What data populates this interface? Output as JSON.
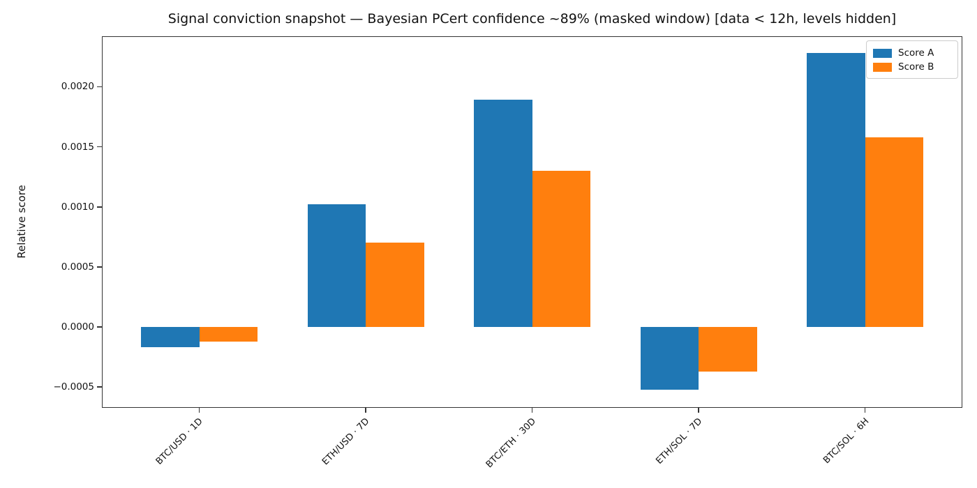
{
  "chart_data": {
    "type": "bar",
    "title": "Signal conviction snapshot — Bayesian PCert confidence ~89% (masked window) [data < 12h, levels hidden]",
    "ylabel": "Relative score",
    "xlabel": "",
    "categories": [
      "BTC/USD · 1D",
      "ETH/USD · 7D",
      "BTC/ETH · 30D",
      "ETH/SOL · 7D",
      "BTC/SOL · 6H"
    ],
    "series": [
      {
        "name": "Score A",
        "color": "#1f77b4",
        "values": [
          -0.00017,
          0.00102,
          0.00189,
          -0.00052,
          0.00228
        ]
      },
      {
        "name": "Score B",
        "color": "#ff7f0e",
        "values": [
          -0.00012,
          0.0007,
          0.0013,
          -0.00037,
          0.00158
        ]
      }
    ],
    "bar_width": 0.35,
    "ylim": [
      -0.000673,
      0.00242
    ],
    "xlim": [
      -0.585,
      4.585
    ],
    "yticks": [
      -0.0005,
      0.0,
      0.0005,
      0.001,
      0.0015,
      0.002
    ],
    "ytick_labels": [
      "−0.0005",
      "0.0000",
      "0.0005",
      "0.0010",
      "0.0015",
      "0.0020"
    ],
    "x_tick_rotation": 45,
    "grid": false,
    "legend": {
      "position": "upper right",
      "entries": [
        "Score A",
        "Score B"
      ]
    }
  }
}
